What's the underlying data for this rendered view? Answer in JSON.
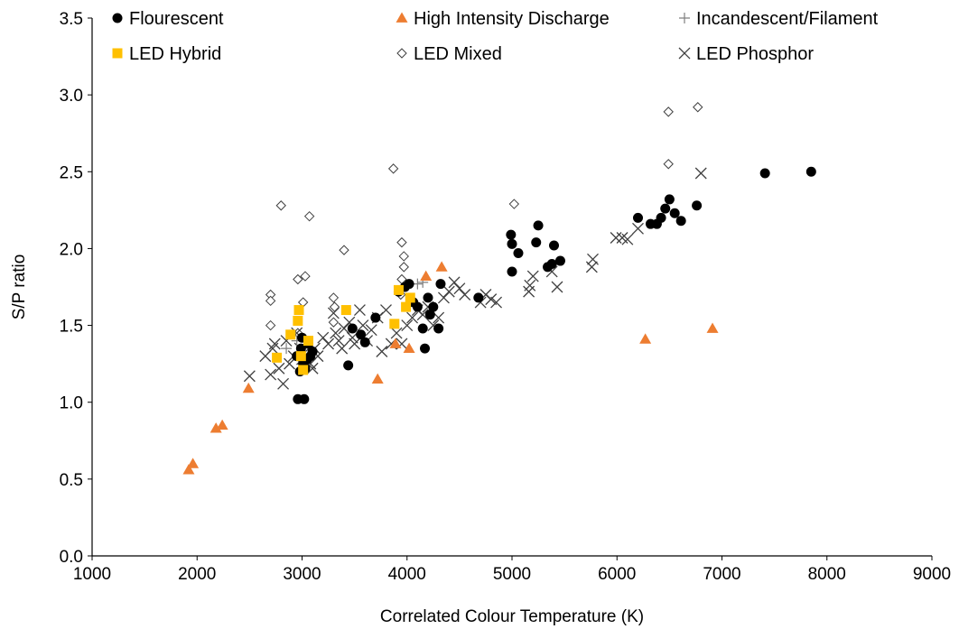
{
  "chart_data": {
    "type": "scatter",
    "xlabel": "Correlated Colour Temperature  (K)",
    "ylabel": "S/P ratio",
    "xlim": [
      1000,
      9000
    ],
    "ylim": [
      0,
      3.5
    ],
    "x_ticks": [
      "1000",
      "2000",
      "3000",
      "4000",
      "5000",
      "6000",
      "7000",
      "8000",
      "9000"
    ],
    "y_ticks": [
      "0.0",
      "0.5",
      "1.0",
      "1.5",
      "2.0",
      "2.5",
      "3.0",
      "3.5"
    ],
    "grid": false,
    "legend_position": "top",
    "series": [
      {
        "name": "Flourescent",
        "marker": "circle",
        "color": "#000000",
        "points": [
          [
            2960,
            1.02
          ],
          [
            3020,
            1.02
          ],
          [
            2950,
            1.3
          ],
          [
            2990,
            1.35
          ],
          [
            3000,
            1.42
          ],
          [
            3010,
            1.25
          ],
          [
            3030,
            1.22
          ],
          [
            3050,
            1.28
          ],
          [
            3080,
            1.3
          ],
          [
            3100,
            1.33
          ],
          [
            2980,
            1.2
          ],
          [
            3060,
            1.38
          ],
          [
            3440,
            1.24
          ],
          [
            3480,
            1.48
          ],
          [
            3560,
            1.44
          ],
          [
            3600,
            1.39
          ],
          [
            3700,
            1.55
          ],
          [
            3920,
            1.72
          ],
          [
            3980,
            1.75
          ],
          [
            4020,
            1.77
          ],
          [
            4060,
            1.65
          ],
          [
            4100,
            1.62
          ],
          [
            4150,
            1.48
          ],
          [
            4170,
            1.35
          ],
          [
            4200,
            1.68
          ],
          [
            4220,
            1.57
          ],
          [
            4250,
            1.62
          ],
          [
            4300,
            1.48
          ],
          [
            4320,
            1.77
          ],
          [
            4680,
            1.68
          ],
          [
            4990,
            2.09
          ],
          [
            5000,
            2.03
          ],
          [
            5000,
            1.85
          ],
          [
            5060,
            1.97
          ],
          [
            5230,
            2.04
          ],
          [
            5250,
            2.15
          ],
          [
            5340,
            1.88
          ],
          [
            5380,
            1.9
          ],
          [
            5400,
            2.02
          ],
          [
            5460,
            1.92
          ],
          [
            6200,
            2.2
          ],
          [
            6320,
            2.16
          ],
          [
            6380,
            2.16
          ],
          [
            6420,
            2.2
          ],
          [
            6460,
            2.26
          ],
          [
            6500,
            2.32
          ],
          [
            6550,
            2.23
          ],
          [
            6610,
            2.18
          ],
          [
            6760,
            2.28
          ],
          [
            7410,
            2.49
          ],
          [
            7850,
            2.5
          ]
        ]
      },
      {
        "name": "High Intensity Discharge",
        "marker": "triangle",
        "color": "#ED7D31",
        "points": [
          [
            1920,
            0.56
          ],
          [
            1960,
            0.6
          ],
          [
            2180,
            0.83
          ],
          [
            2240,
            0.85
          ],
          [
            2490,
            1.09
          ],
          [
            3720,
            1.15
          ],
          [
            3890,
            1.38
          ],
          [
            4020,
            1.35
          ],
          [
            4180,
            1.82
          ],
          [
            4330,
            1.88
          ],
          [
            6270,
            1.41
          ],
          [
            6910,
            1.48
          ]
        ]
      },
      {
        "name": "Incandescent/Filament",
        "marker": "plus",
        "color": "#7F7F7F",
        "points": [
          [
            2850,
            1.35
          ],
          [
            2950,
            1.4
          ],
          [
            4100,
            1.77
          ],
          [
            4150,
            1.78
          ]
        ]
      },
      {
        "name": "LED Hybrid",
        "marker": "square",
        "color": "#FFC000",
        "points": [
          [
            2760,
            1.29
          ],
          [
            2890,
            1.44
          ],
          [
            2970,
            1.6
          ],
          [
            2960,
            1.53
          ],
          [
            2990,
            1.3
          ],
          [
            3010,
            1.21
          ],
          [
            3060,
            1.4
          ],
          [
            3420,
            1.6
          ],
          [
            3880,
            1.51
          ],
          [
            3920,
            1.73
          ],
          [
            3990,
            1.62
          ],
          [
            4030,
            1.68
          ]
        ]
      },
      {
        "name": "LED Mixed",
        "marker": "diamond",
        "color": "#404040",
        "points": [
          [
            2700,
            1.7
          ],
          [
            2700,
            1.66
          ],
          [
            2700,
            1.5
          ],
          [
            2800,
            2.28
          ],
          [
            2960,
            1.8
          ],
          [
            3030,
            1.82
          ],
          [
            3070,
            2.21
          ],
          [
            3010,
            1.65
          ],
          [
            3300,
            1.68
          ],
          [
            3310,
            1.62
          ],
          [
            3400,
            1.99
          ],
          [
            3870,
            2.52
          ],
          [
            3950,
            2.04
          ],
          [
            3970,
            1.95
          ],
          [
            3970,
            1.88
          ],
          [
            3950,
            1.8
          ],
          [
            3940,
            1.7
          ],
          [
            5020,
            2.29
          ],
          [
            6490,
            2.89
          ],
          [
            6490,
            2.55
          ],
          [
            6770,
            2.92
          ],
          [
            2960,
            1.45
          ],
          [
            3300,
            1.52
          ]
        ]
      },
      {
        "name": "LED Phosphor",
        "marker": "x",
        "color": "#404040",
        "points": [
          [
            2500,
            1.17
          ],
          [
            2650,
            1.3
          ],
          [
            2700,
            1.18
          ],
          [
            2720,
            1.35
          ],
          [
            2740,
            1.38
          ],
          [
            2780,
            1.22
          ],
          [
            2820,
            1.12
          ],
          [
            2850,
            1.4
          ],
          [
            2880,
            1.25
          ],
          [
            2920,
            1.3
          ],
          [
            2950,
            1.45
          ],
          [
            2980,
            1.35
          ],
          [
            3000,
            1.28
          ],
          [
            3020,
            1.32
          ],
          [
            3050,
            1.38
          ],
          [
            3080,
            1.25
          ],
          [
            3100,
            1.22
          ],
          [
            3120,
            1.35
          ],
          [
            3150,
            1.3
          ],
          [
            3200,
            1.42
          ],
          [
            3250,
            1.38
          ],
          [
            3300,
            1.58
          ],
          [
            3320,
            1.45
          ],
          [
            3350,
            1.4
          ],
          [
            3380,
            1.35
          ],
          [
            3400,
            1.48
          ],
          [
            3450,
            1.52
          ],
          [
            3480,
            1.42
          ],
          [
            3500,
            1.38
          ],
          [
            3550,
            1.6
          ],
          [
            3580,
            1.5
          ],
          [
            3620,
            1.4
          ],
          [
            3660,
            1.47
          ],
          [
            3720,
            1.55
          ],
          [
            3760,
            1.33
          ],
          [
            3800,
            1.6
          ],
          [
            3850,
            1.38
          ],
          [
            3900,
            1.45
          ],
          [
            3950,
            1.38
          ],
          [
            4000,
            1.5
          ],
          [
            4050,
            1.55
          ],
          [
            4100,
            1.6
          ],
          [
            4150,
            1.57
          ],
          [
            4200,
            1.62
          ],
          [
            4250,
            1.5
          ],
          [
            4300,
            1.55
          ],
          [
            4350,
            1.68
          ],
          [
            4400,
            1.72
          ],
          [
            4450,
            1.78
          ],
          [
            4500,
            1.74
          ],
          [
            4550,
            1.7
          ],
          [
            4700,
            1.65
          ],
          [
            4750,
            1.7
          ],
          [
            4800,
            1.67
          ],
          [
            4850,
            1.65
          ],
          [
            5160,
            1.72
          ],
          [
            5170,
            1.76
          ],
          [
            5200,
            1.82
          ],
          [
            5380,
            1.85
          ],
          [
            5430,
            1.75
          ],
          [
            5760,
            1.88
          ],
          [
            5770,
            1.93
          ],
          [
            5990,
            2.07
          ],
          [
            6050,
            2.07
          ],
          [
            6100,
            2.06
          ],
          [
            6200,
            2.13
          ],
          [
            6800,
            2.49
          ]
        ]
      }
    ]
  }
}
